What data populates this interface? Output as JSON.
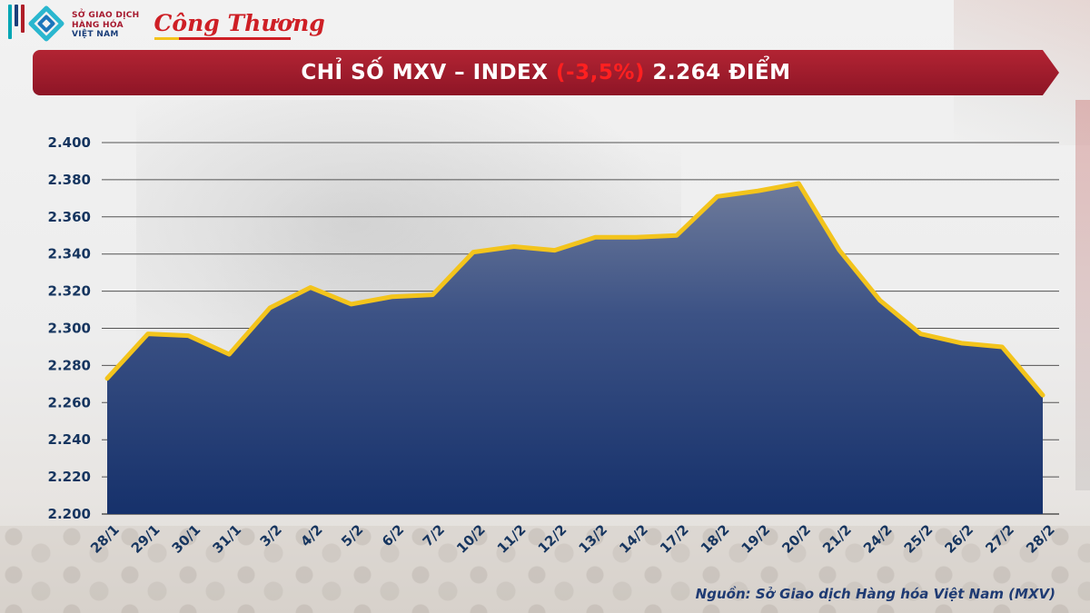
{
  "header": {
    "mxv_logo": {
      "line1": "SỞ GIAO DỊCH",
      "line2": "HÀNG HÓA",
      "line3": "VIỆT NAM"
    },
    "congthuong": "Công Thương"
  },
  "banner": {
    "title_prefix": "CHỈ SỐ MXV – INDEX ",
    "change": "(-3,5%)",
    "title_suffix": " 2.264 ĐIỂM"
  },
  "chart_data": {
    "type": "area",
    "title": "CHỈ SỐ MXV – INDEX (-3,5%) 2.264 ĐIỂM",
    "x": [
      "28/1",
      "29/1",
      "30/1",
      "31/1",
      "3/2",
      "4/2",
      "5/2",
      "6/2",
      "7/2",
      "10/2",
      "11/2",
      "12/2",
      "13/2",
      "14/2",
      "17/2",
      "18/2",
      "19/2",
      "20/2",
      "21/2",
      "24/2",
      "25/2",
      "26/2",
      "27/2",
      "28/2"
    ],
    "values": [
      2273,
      2297,
      2296,
      2286,
      2311,
      2322,
      2313,
      2317,
      2318,
      2341,
      2344,
      2342,
      2349,
      2349,
      2350,
      2371,
      2374,
      2378,
      2342,
      2315,
      2297,
      2292,
      2290,
      2264
    ],
    "ylim": [
      2200,
      2400
    ],
    "ytick_values": [
      2400,
      2380,
      2360,
      2340,
      2320,
      2300,
      2280,
      2260,
      2240,
      2220,
      2200
    ],
    "ytick_labels": [
      "2.400",
      "2.380",
      "2.360",
      "2.340",
      "2.320",
      "2.300",
      "2.280",
      "2.260",
      "2.240",
      "2.220",
      "2.200"
    ],
    "grid": true,
    "legend": "none",
    "colors": {
      "line": "#f3c41c",
      "fill_top": "#6e7b9b",
      "fill_mid": "#3c5285",
      "fill_bottom": "#16316b",
      "grid": "#3a3a3a",
      "tick_text": "#16355f"
    }
  },
  "footer": {
    "source": "Nguồn: Sở Giao dịch Hàng hóa Việt Nam (MXV)"
  }
}
